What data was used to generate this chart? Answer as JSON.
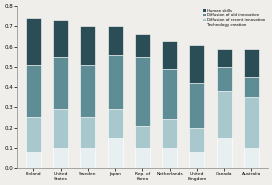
{
  "categories": [
    "Finland",
    "United\nStates",
    "Sweden",
    "Japan",
    "Rep. of\nKorea",
    "Netherlands",
    "United\nKingdom",
    "Canada",
    "Australia"
  ],
  "segments": {
    "Technology creation": [
      0.08,
      0.1,
      0.1,
      0.15,
      0.1,
      0.1,
      0.08,
      0.15,
      0.1
    ],
    "Diffusion of recent innovation": [
      0.17,
      0.19,
      0.15,
      0.14,
      0.11,
      0.14,
      0.12,
      0.23,
      0.25
    ],
    "Diffusion of old innovation": [
      0.26,
      0.26,
      0.26,
      0.27,
      0.34,
      0.25,
      0.22,
      0.12,
      0.1
    ],
    "Human skills": [
      0.23,
      0.18,
      0.19,
      0.14,
      0.11,
      0.14,
      0.19,
      0.09,
      0.14
    ]
  },
  "colors": {
    "Technology creation": "#e8eff1",
    "Diffusion of recent innovation": "#a8c8ce",
    "Diffusion of old innovation": "#5e8d95",
    "Human skills": "#2b4d56"
  },
  "legend_order": [
    "Human skills",
    "Diffusion of old innovation",
    "Diffusion of recent innovation",
    "Technology creation"
  ],
  "legend_prefix": [
    "",
    "D",
    "D",
    "D"
  ],
  "ylim": [
    0,
    0.8
  ],
  "yticks": [
    0.0,
    0.1,
    0.2,
    0.3,
    0.4,
    0.5,
    0.6,
    0.7,
    0.8
  ],
  "bar_width": 0.55,
  "background_color": "#f0eeea"
}
